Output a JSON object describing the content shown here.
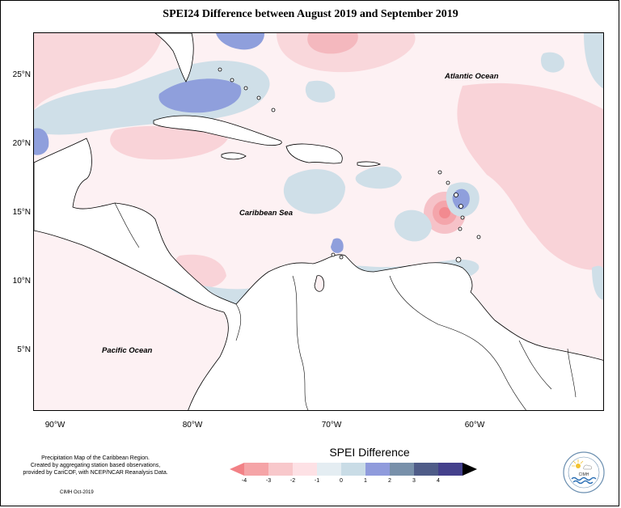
{
  "title": "SPEI24 Difference between August 2019 and September 2019",
  "map": {
    "lat_ticks": [
      "25°N",
      "20°N",
      "15°N",
      "10°N",
      "5°N"
    ],
    "lon_ticks": [
      "90°W",
      "80°W",
      "70°W",
      "60°W"
    ],
    "labels": {
      "atlantic": "Atlantic Ocean",
      "caribbean": "Caribbean Sea",
      "pacific": "Pacific Ocean"
    },
    "colors": {
      "ocean_base": "#fdf1f3",
      "land": "#ffffff",
      "coastline": "#000000"
    }
  },
  "legend": {
    "title": "SPEI Difference",
    "ticks": [
      "-4",
      "-3",
      "-2",
      "-1",
      "0",
      "1",
      "2",
      "3",
      "4"
    ],
    "colors": [
      "#f28186",
      "#f5a4a7",
      "#f8c8cb",
      "#fde1e5",
      "#e4edf2",
      "#c9dce6",
      "#8f9bdc",
      "#7890aa",
      "#4f5c88",
      "#44408c"
    ]
  },
  "footer": {
    "lines": [
      "Precipitation Map of the Caribbean Region.",
      "Created by aggregating station based observations,",
      "provided by CariCOF, with NCEP/NCAR Reanalysis Data."
    ],
    "credit": "CIMH Oct-2019"
  },
  "logo": {
    "text": "CIMH",
    "icon": "cimh-logo-icon"
  }
}
